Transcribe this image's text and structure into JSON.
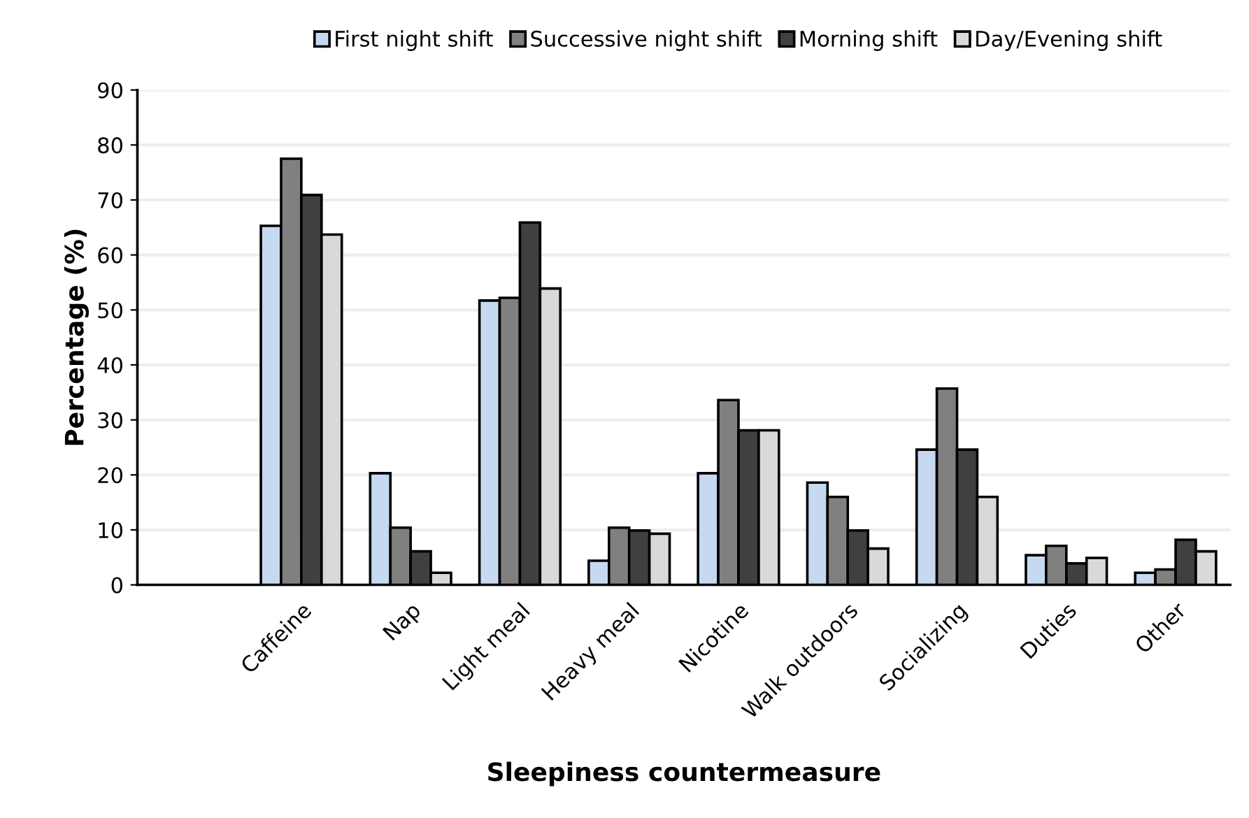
{
  "chart_data": {
    "type": "bar",
    "xlabel": "Sleepiness countermeasure",
    "ylabel": "Percentage (%)",
    "categories": [
      null,
      "Caffeine",
      "Nap",
      "Light meal",
      "Heavy meal",
      "Nicotine",
      "Walk outdoors",
      "Socializing",
      "Duties",
      "Other"
    ],
    "series": [
      {
        "name": "First night shift",
        "color": "#c6d9f0",
        "values": [
          null,
          65.3,
          20.3,
          51.7,
          4.4,
          20.3,
          18.6,
          24.6,
          5.4,
          2.2
        ]
      },
      {
        "name": "Successive night shift",
        "color": "#808080",
        "values": [
          null,
          77.5,
          10.4,
          52.2,
          10.4,
          33.6,
          16.0,
          35.7,
          7.1,
          2.8
        ]
      },
      {
        "name": "Morning shift",
        "color": "#404040",
        "values": [
          null,
          70.9,
          6.1,
          65.9,
          9.9,
          28.1,
          9.9,
          24.6,
          3.9,
          8.2
        ]
      },
      {
        "name": "Day/Evening shift",
        "color": "#d9d9d9",
        "values": [
          null,
          63.7,
          2.2,
          53.9,
          9.3,
          28.1,
          6.6,
          16.0,
          4.9,
          6.1
        ]
      }
    ],
    "ylim": [
      0,
      90
    ],
    "yticks": [
      0,
      10,
      20,
      30,
      40,
      50,
      60,
      70,
      80,
      90
    ],
    "grid": "y",
    "legend": "top"
  }
}
